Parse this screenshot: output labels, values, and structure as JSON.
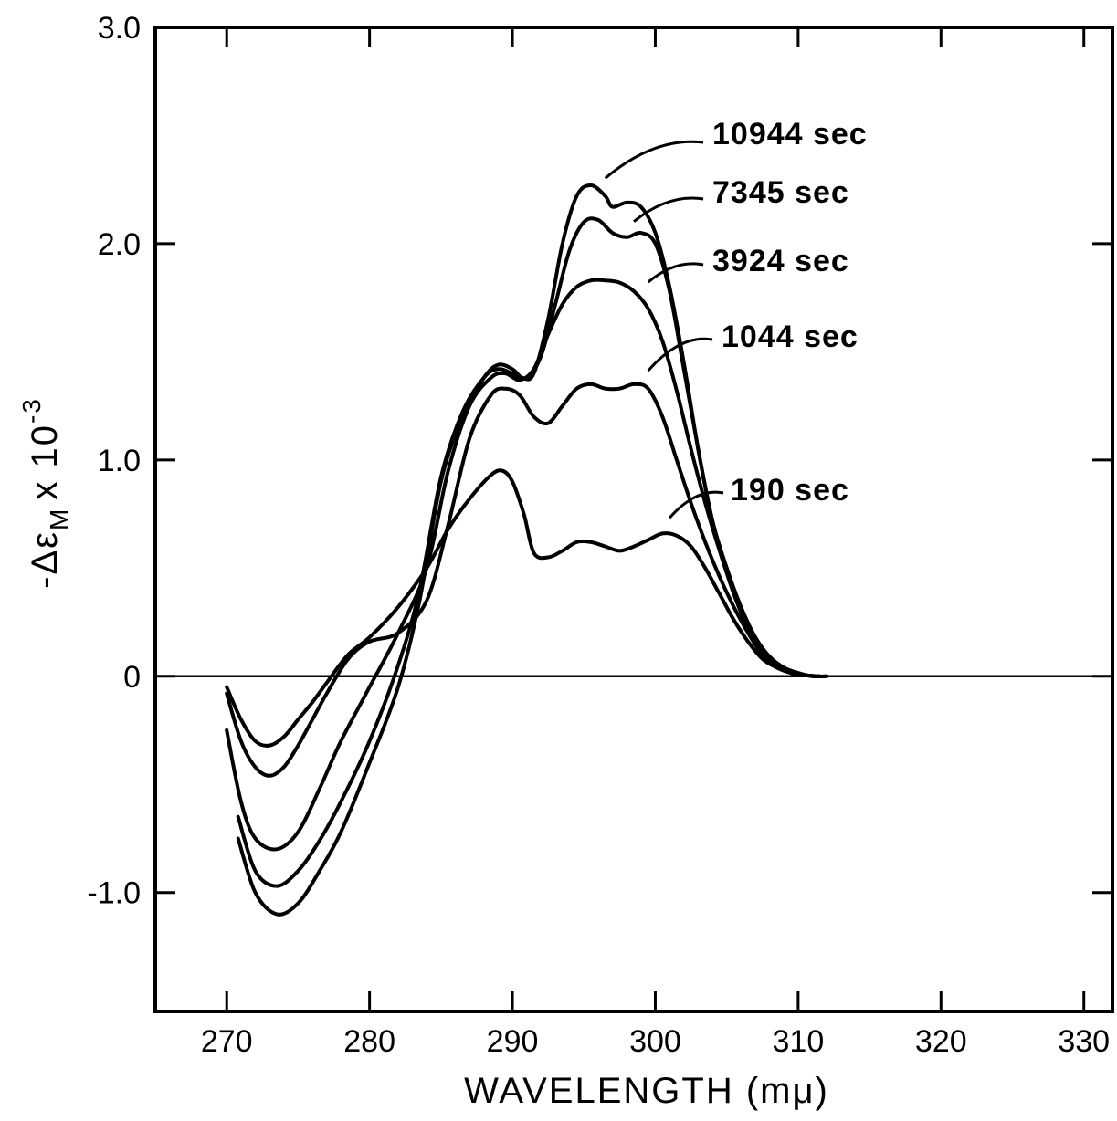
{
  "chart_data": {
    "type": "line",
    "title": "",
    "xlabel": "WAVELENGTH (mμ)",
    "ylabel": "-Δε",
    "ylabel_subscript": "M",
    "ylabel_factor": "x 10",
    "ylabel_exponent": "-3",
    "xlim": [
      265,
      332
    ],
    "ylim": [
      -1.55,
      3.0
    ],
    "x_ticks": [
      270,
      280,
      290,
      300,
      310,
      320,
      330
    ],
    "x_tick_labels": [
      "270",
      "280",
      "290",
      "300",
      "310",
      "320",
      "330"
    ],
    "y_ticks": [
      -1.0,
      0,
      1.0,
      2.0,
      3.0
    ],
    "y_tick_labels": [
      "-1.0",
      "0",
      "1.0",
      "2.0",
      "3.0"
    ],
    "grid": false,
    "zero_line": true,
    "series": [
      {
        "name": "10944 sec",
        "x": [
          270.8,
          272.0,
          273.5,
          275.0,
          276.5,
          278.0,
          280.0,
          282.0,
          283.5,
          285.0,
          286.5,
          288.0,
          289.0,
          290.0,
          290.7,
          291.5,
          292.5,
          293.5,
          294.5,
          295.5,
          296.5,
          297.0,
          298.0,
          299.0,
          300.0,
          301.0,
          302.0,
          303.0,
          304.0,
          305.0,
          306.0,
          307.0,
          308.0,
          309.0,
          310.0,
          311.0,
          312.0
        ],
        "values": [
          -0.75,
          -1.0,
          -1.1,
          -1.05,
          -0.9,
          -0.72,
          -0.4,
          -0.05,
          0.35,
          0.9,
          1.2,
          1.38,
          1.44,
          1.42,
          1.38,
          1.4,
          1.65,
          2.0,
          2.22,
          2.27,
          2.22,
          2.17,
          2.19,
          2.17,
          2.05,
          1.8,
          1.45,
          1.05,
          0.72,
          0.5,
          0.32,
          0.18,
          0.09,
          0.04,
          0.015,
          0.0,
          0.0
        ]
      },
      {
        "name": "7345 sec",
        "x": [
          270.8,
          272.0,
          273.5,
          275.0,
          276.5,
          278.0,
          280.0,
          282.0,
          283.5,
          285.0,
          286.5,
          288.0,
          289.0,
          290.0,
          291.0,
          292.0,
          293.0,
          294.0,
          295.0,
          296.0,
          297.0,
          298.0,
          299.0,
          300.0,
          301.0,
          302.0,
          303.0,
          304.0,
          305.0,
          306.0,
          307.0,
          308.0,
          309.0,
          310.0,
          311.0,
          312.0
        ],
        "values": [
          -0.65,
          -0.9,
          -0.97,
          -0.9,
          -0.76,
          -0.58,
          -0.3,
          0.05,
          0.4,
          0.92,
          1.22,
          1.38,
          1.42,
          1.4,
          1.38,
          1.48,
          1.72,
          1.97,
          2.1,
          2.11,
          2.05,
          2.03,
          2.05,
          2.0,
          1.78,
          1.42,
          1.05,
          0.72,
          0.5,
          0.32,
          0.18,
          0.09,
          0.04,
          0.015,
          0.0,
          0.0
        ]
      },
      {
        "name": "3924 sec",
        "x": [
          270.0,
          271.0,
          272.0,
          273.5,
          275.0,
          276.5,
          278.0,
          280.0,
          282.0,
          284.0,
          285.5,
          287.0,
          288.5,
          289.5,
          290.5,
          291.5,
          292.5,
          293.5,
          294.5,
          295.5,
          296.5,
          297.5,
          298.5,
          299.5,
          300.5,
          301.5,
          302.5,
          303.5,
          304.5,
          305.5,
          306.5,
          307.5,
          308.5,
          309.5,
          310.5,
          311.5
        ],
        "values": [
          -0.25,
          -0.58,
          -0.75,
          -0.8,
          -0.72,
          -0.52,
          -0.3,
          -0.05,
          0.2,
          0.5,
          0.95,
          1.25,
          1.38,
          1.4,
          1.37,
          1.42,
          1.58,
          1.72,
          1.8,
          1.83,
          1.83,
          1.82,
          1.78,
          1.7,
          1.55,
          1.32,
          1.05,
          0.8,
          0.58,
          0.38,
          0.22,
          0.11,
          0.05,
          0.02,
          0.005,
          0.0
        ]
      },
      {
        "name": "1044 sec",
        "x": [
          270.0,
          271.0,
          272.0,
          273.0,
          274.0,
          275.0,
          276.0,
          277.0,
          278.5,
          280.0,
          282.0,
          284.0,
          285.5,
          287.0,
          288.5,
          289.5,
          290.5,
          291.5,
          292.5,
          293.5,
          294.5,
          295.5,
          296.5,
          297.5,
          298.5,
          299.5,
          300.5,
          301.5,
          302.5,
          303.5,
          304.5,
          305.5,
          306.5,
          307.5,
          308.5,
          309.5,
          310.5,
          311.5
        ],
        "values": [
          -0.08,
          -0.3,
          -0.42,
          -0.46,
          -0.42,
          -0.32,
          -0.2,
          -0.08,
          0.08,
          0.16,
          0.2,
          0.35,
          0.7,
          1.1,
          1.3,
          1.33,
          1.3,
          1.2,
          1.17,
          1.25,
          1.33,
          1.35,
          1.33,
          1.33,
          1.35,
          1.33,
          1.2,
          1.0,
          0.8,
          0.62,
          0.46,
          0.32,
          0.2,
          0.1,
          0.05,
          0.02,
          0.005,
          0.0
        ]
      },
      {
        "name": "190 sec",
        "x": [
          270.0,
          271.0,
          272.0,
          273.0,
          274.0,
          275.0,
          276.0,
          277.0,
          278.5,
          280.0,
          282.0,
          284.0,
          285.5,
          287.0,
          288.5,
          289.3,
          290.0,
          290.8,
          291.5,
          292.5,
          293.5,
          294.5,
          295.5,
          296.5,
          297.5,
          298.5,
          299.5,
          300.5,
          301.5,
          302.5,
          303.5,
          304.5,
          305.5,
          306.5,
          307.5,
          308.5,
          309.5,
          310.5,
          311.5
        ],
        "values": [
          -0.05,
          -0.2,
          -0.3,
          -0.32,
          -0.28,
          -0.2,
          -0.12,
          -0.03,
          0.1,
          0.18,
          0.32,
          0.5,
          0.68,
          0.82,
          0.93,
          0.95,
          0.9,
          0.75,
          0.57,
          0.55,
          0.58,
          0.62,
          0.62,
          0.6,
          0.58,
          0.6,
          0.63,
          0.66,
          0.65,
          0.6,
          0.5,
          0.38,
          0.26,
          0.16,
          0.08,
          0.04,
          0.015,
          0.005,
          0.0
        ]
      }
    ],
    "annotations": [
      {
        "series": "10944 sec",
        "text": "10944 sec"
      },
      {
        "series": "7345 sec",
        "text": "7345 sec"
      },
      {
        "series": "3924 sec",
        "text": "3924 sec"
      },
      {
        "series": "1044 sec",
        "text": "1044 sec"
      },
      {
        "series": "190 sec",
        "text": "190 sec"
      }
    ]
  }
}
